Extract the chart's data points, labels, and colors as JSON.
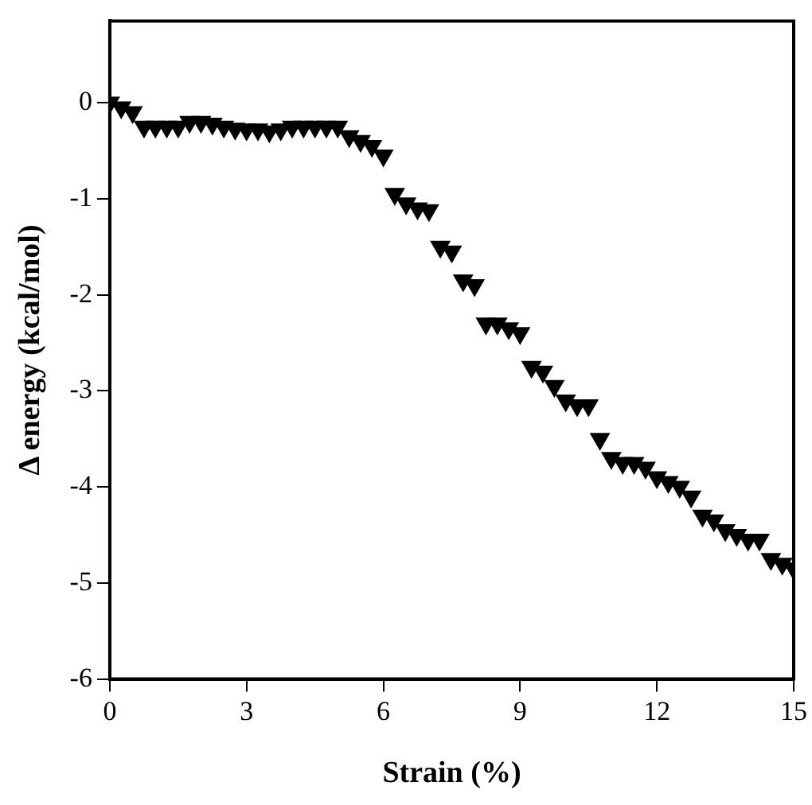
{
  "chart_data": {
    "type": "scatter",
    "xlabel": "Strain (%)",
    "ylabel": "Δ energy (kcal/mol)",
    "xlim": [
      0,
      15
    ],
    "ylim": [
      -6,
      0.85
    ],
    "xticks": [
      0,
      3,
      6,
      9,
      12,
      15
    ],
    "yticks": [
      -6,
      -5,
      -4,
      -3,
      -2,
      -1,
      0
    ],
    "grid": false,
    "legend": false,
    "marker": "triangle",
    "series": [
      {
        "color": "#000000",
        "x": [
          0,
          0.25,
          0.5,
          0.75,
          1,
          1.25,
          1.5,
          1.75,
          2,
          2.25,
          2.5,
          2.75,
          3,
          3.25,
          3.5,
          3.75,
          4,
          4.25,
          4.5,
          4.75,
          5,
          5.25,
          5.5,
          5.75,
          6,
          6.25,
          6.5,
          6.75,
          7,
          7.25,
          7.5,
          7.75,
          8,
          8.25,
          8.5,
          8.75,
          9,
          9.25,
          9.5,
          9.75,
          10,
          10.25,
          10.5,
          10.75,
          11,
          11.25,
          11.5,
          11.75,
          12,
          12.25,
          12.5,
          12.75,
          13,
          13.25,
          13.5,
          13.75,
          14,
          14.25,
          14.5,
          14.75,
          15
        ],
        "values": [
          0,
          -0.05,
          -0.1,
          -0.25,
          -0.25,
          -0.25,
          -0.25,
          -0.2,
          -0.2,
          -0.22,
          -0.25,
          -0.27,
          -0.28,
          -0.28,
          -0.3,
          -0.28,
          -0.25,
          -0.25,
          -0.25,
          -0.25,
          -0.25,
          -0.35,
          -0.4,
          -0.45,
          -0.55,
          -0.95,
          -1.05,
          -1.1,
          -1.12,
          -1.5,
          -1.55,
          -1.85,
          -1.9,
          -2.3,
          -2.3,
          -2.35,
          -2.4,
          -2.75,
          -2.8,
          -2.95,
          -3.1,
          -3.15,
          -3.15,
          -3.5,
          -3.7,
          -3.75,
          -3.75,
          -3.8,
          -3.9,
          -3.95,
          -4,
          -4.1,
          -4.3,
          -4.35,
          -4.45,
          -4.5,
          -4.55,
          -4.55,
          -4.75,
          -4.8,
          -4.85
        ]
      }
    ]
  }
}
